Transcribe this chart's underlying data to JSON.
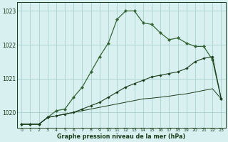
{
  "title": "Graphe pression niveau de la mer (hPa)",
  "x_labels": [
    "0",
    "1",
    "2",
    "3",
    "4",
    "5",
    "6",
    "7",
    "8",
    "9",
    "10",
    "11",
    "12",
    "13",
    "14",
    "15",
    "16",
    "17",
    "18",
    "19",
    "20",
    "21",
    "22",
    "23"
  ],
  "xlim": [
    -0.5,
    23.5
  ],
  "ylim": [
    1019.55,
    1023.25
  ],
  "yticks": [
    1020,
    1021,
    1022,
    1023
  ],
  "background_color": "#d9f0f0",
  "grid_color": "#aacfcf",
  "line_color_light": "#336633",
  "line_color_dark": "#1a3d1a",
  "series1": [
    1019.65,
    1019.65,
    1019.65,
    1019.85,
    1020.05,
    1020.1,
    1020.45,
    1020.75,
    1021.2,
    1021.65,
    1022.05,
    1022.75,
    1023.0,
    1023.0,
    1022.65,
    1022.6,
    1022.35,
    1022.15,
    1022.2,
    1022.05,
    1021.95,
    1021.95,
    1021.55,
    1020.4
  ],
  "series2": [
    1019.65,
    1019.65,
    1019.65,
    1019.85,
    1019.9,
    1019.95,
    1020.0,
    1020.1,
    1020.2,
    1020.3,
    1020.45,
    1020.6,
    1020.75,
    1020.85,
    1020.95,
    1021.05,
    1021.1,
    1021.15,
    1021.2,
    1021.3,
    1021.5,
    1021.6,
    1021.65,
    1020.4
  ],
  "series3": [
    1019.65,
    1019.65,
    1019.65,
    1019.85,
    1019.9,
    1019.95,
    1020.0,
    1020.05,
    1020.1,
    1020.15,
    1020.2,
    1020.25,
    1020.3,
    1020.35,
    1020.4,
    1020.42,
    1020.45,
    1020.48,
    1020.52,
    1020.55,
    1020.6,
    1020.65,
    1020.7,
    1020.4
  ]
}
